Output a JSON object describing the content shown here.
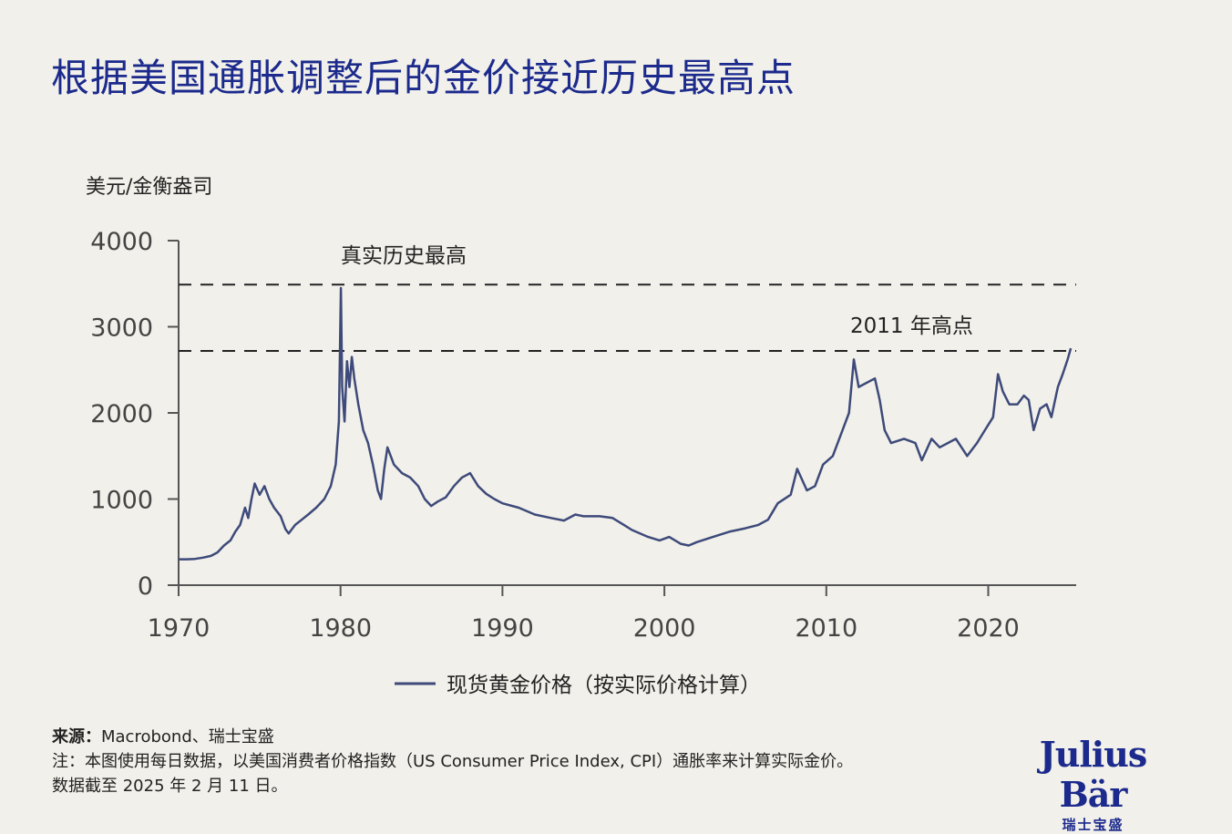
{
  "title": "根据美国通胀调整后的金价接近历史最高点",
  "chart_data": {
    "type": "line",
    "title": "根据美国通胀调整后的金价接近历史最高点",
    "ylabel": "美元/金衡盎司",
    "xlabel": "",
    "xlim": [
      1970,
      2025.4
    ],
    "ylim": [
      0,
      4000
    ],
    "x_ticks": [
      1970,
      1980,
      1990,
      2000,
      2010,
      2020
    ],
    "y_ticks": [
      0,
      1000,
      2000,
      3000,
      4000
    ],
    "grid": false,
    "legend": "bottom-center",
    "line_color": "#3d4a7a",
    "reference_lines": [
      {
        "label": "真实历史最高",
        "value": 3490
      },
      {
        "label": "2011 年高点",
        "value": 2720
      }
    ],
    "series": [
      {
        "name": "现货黄金价格（按实际价格计算）",
        "x": [
          1970,
          1970.5,
          1971,
          1971.5,
          1972,
          1972.4,
          1972.8,
          1973.2,
          1973.5,
          1973.8,
          1974.1,
          1974.3,
          1974.5,
          1974.7,
          1975,
          1975.3,
          1975.6,
          1975.9,
          1976.3,
          1976.6,
          1976.8,
          1977.2,
          1977.6,
          1978,
          1978.5,
          1979,
          1979.4,
          1979.7,
          1979.9,
          1980.02,
          1980.1,
          1980.25,
          1980.4,
          1980.55,
          1980.7,
          1980.85,
          1981.1,
          1981.4,
          1981.7,
          1982,
          1982.3,
          1982.5,
          1982.7,
          1982.9,
          1983.3,
          1983.8,
          1984.3,
          1984.8,
          1985.2,
          1985.6,
          1986,
          1986.5,
          1987,
          1987.5,
          1988,
          1988.5,
          1989,
          1989.5,
          1990,
          1991,
          1992,
          1993,
          1993.8,
          1994.5,
          1995,
          1996,
          1996.8,
          1997.5,
          1998,
          1999,
          1999.7,
          2000.3,
          2001,
          2001.5,
          2002,
          2003,
          2004,
          2005,
          2005.8,
          2006.4,
          2007,
          2007.8,
          2008.2,
          2008.8,
          2009.3,
          2009.8,
          2010.4,
          2011,
          2011.4,
          2011.7,
          2012,
          2012.5,
          2013,
          2013.3,
          2013.6,
          2014,
          2014.8,
          2015.5,
          2015.9,
          2016.5,
          2017,
          2017.5,
          2018,
          2018.7,
          2019.3,
          2019.8,
          2020.3,
          2020.6,
          2020.9,
          2021.3,
          2021.8,
          2022.2,
          2022.5,
          2022.8,
          2023.2,
          2023.6,
          2023.9,
          2024.3,
          2024.6,
          2024.9,
          2025.1
        ],
        "values": [
          300,
          300,
          305,
          320,
          340,
          380,
          460,
          520,
          620,
          700,
          900,
          780,
          1000,
          1180,
          1050,
          1150,
          1000,
          900,
          800,
          650,
          600,
          700,
          760,
          820,
          900,
          1000,
          1150,
          1400,
          1900,
          3450,
          2300,
          1900,
          2600,
          2300,
          2650,
          2400,
          2100,
          1800,
          1650,
          1400,
          1100,
          1000,
          1350,
          1600,
          1400,
          1300,
          1250,
          1150,
          1000,
          920,
          970,
          1020,
          1150,
          1250,
          1300,
          1150,
          1060,
          1000,
          950,
          900,
          820,
          780,
          750,
          820,
          800,
          800,
          780,
          700,
          640,
          560,
          520,
          560,
          480,
          460,
          500,
          560,
          620,
          660,
          700,
          760,
          950,
          1050,
          1350,
          1100,
          1150,
          1400,
          1500,
          1800,
          2000,
          2620,
          2300,
          2350,
          2400,
          2150,
          1800,
          1650,
          1700,
          1650,
          1450,
          1700,
          1600,
          1650,
          1700,
          1500,
          1650,
          1800,
          1950,
          2450,
          2250,
          2100,
          2100,
          2200,
          2150,
          1800,
          2050,
          2100,
          1950,
          2300,
          2450,
          2620,
          2750
        ]
      }
    ]
  },
  "notes": {
    "source_label": "来源：",
    "source_text": "Macrobond、瑞士宝盛",
    "note_line": "注：本图使用每日数据，以美国消费者价格指数（US Consumer Price Index, CPI）通胀率来计算实际金价。",
    "date_line": "数据截至 2025 年 2 月 11 日。"
  },
  "logo": {
    "main": "Julius Bär",
    "sub": "瑞士宝盛"
  }
}
